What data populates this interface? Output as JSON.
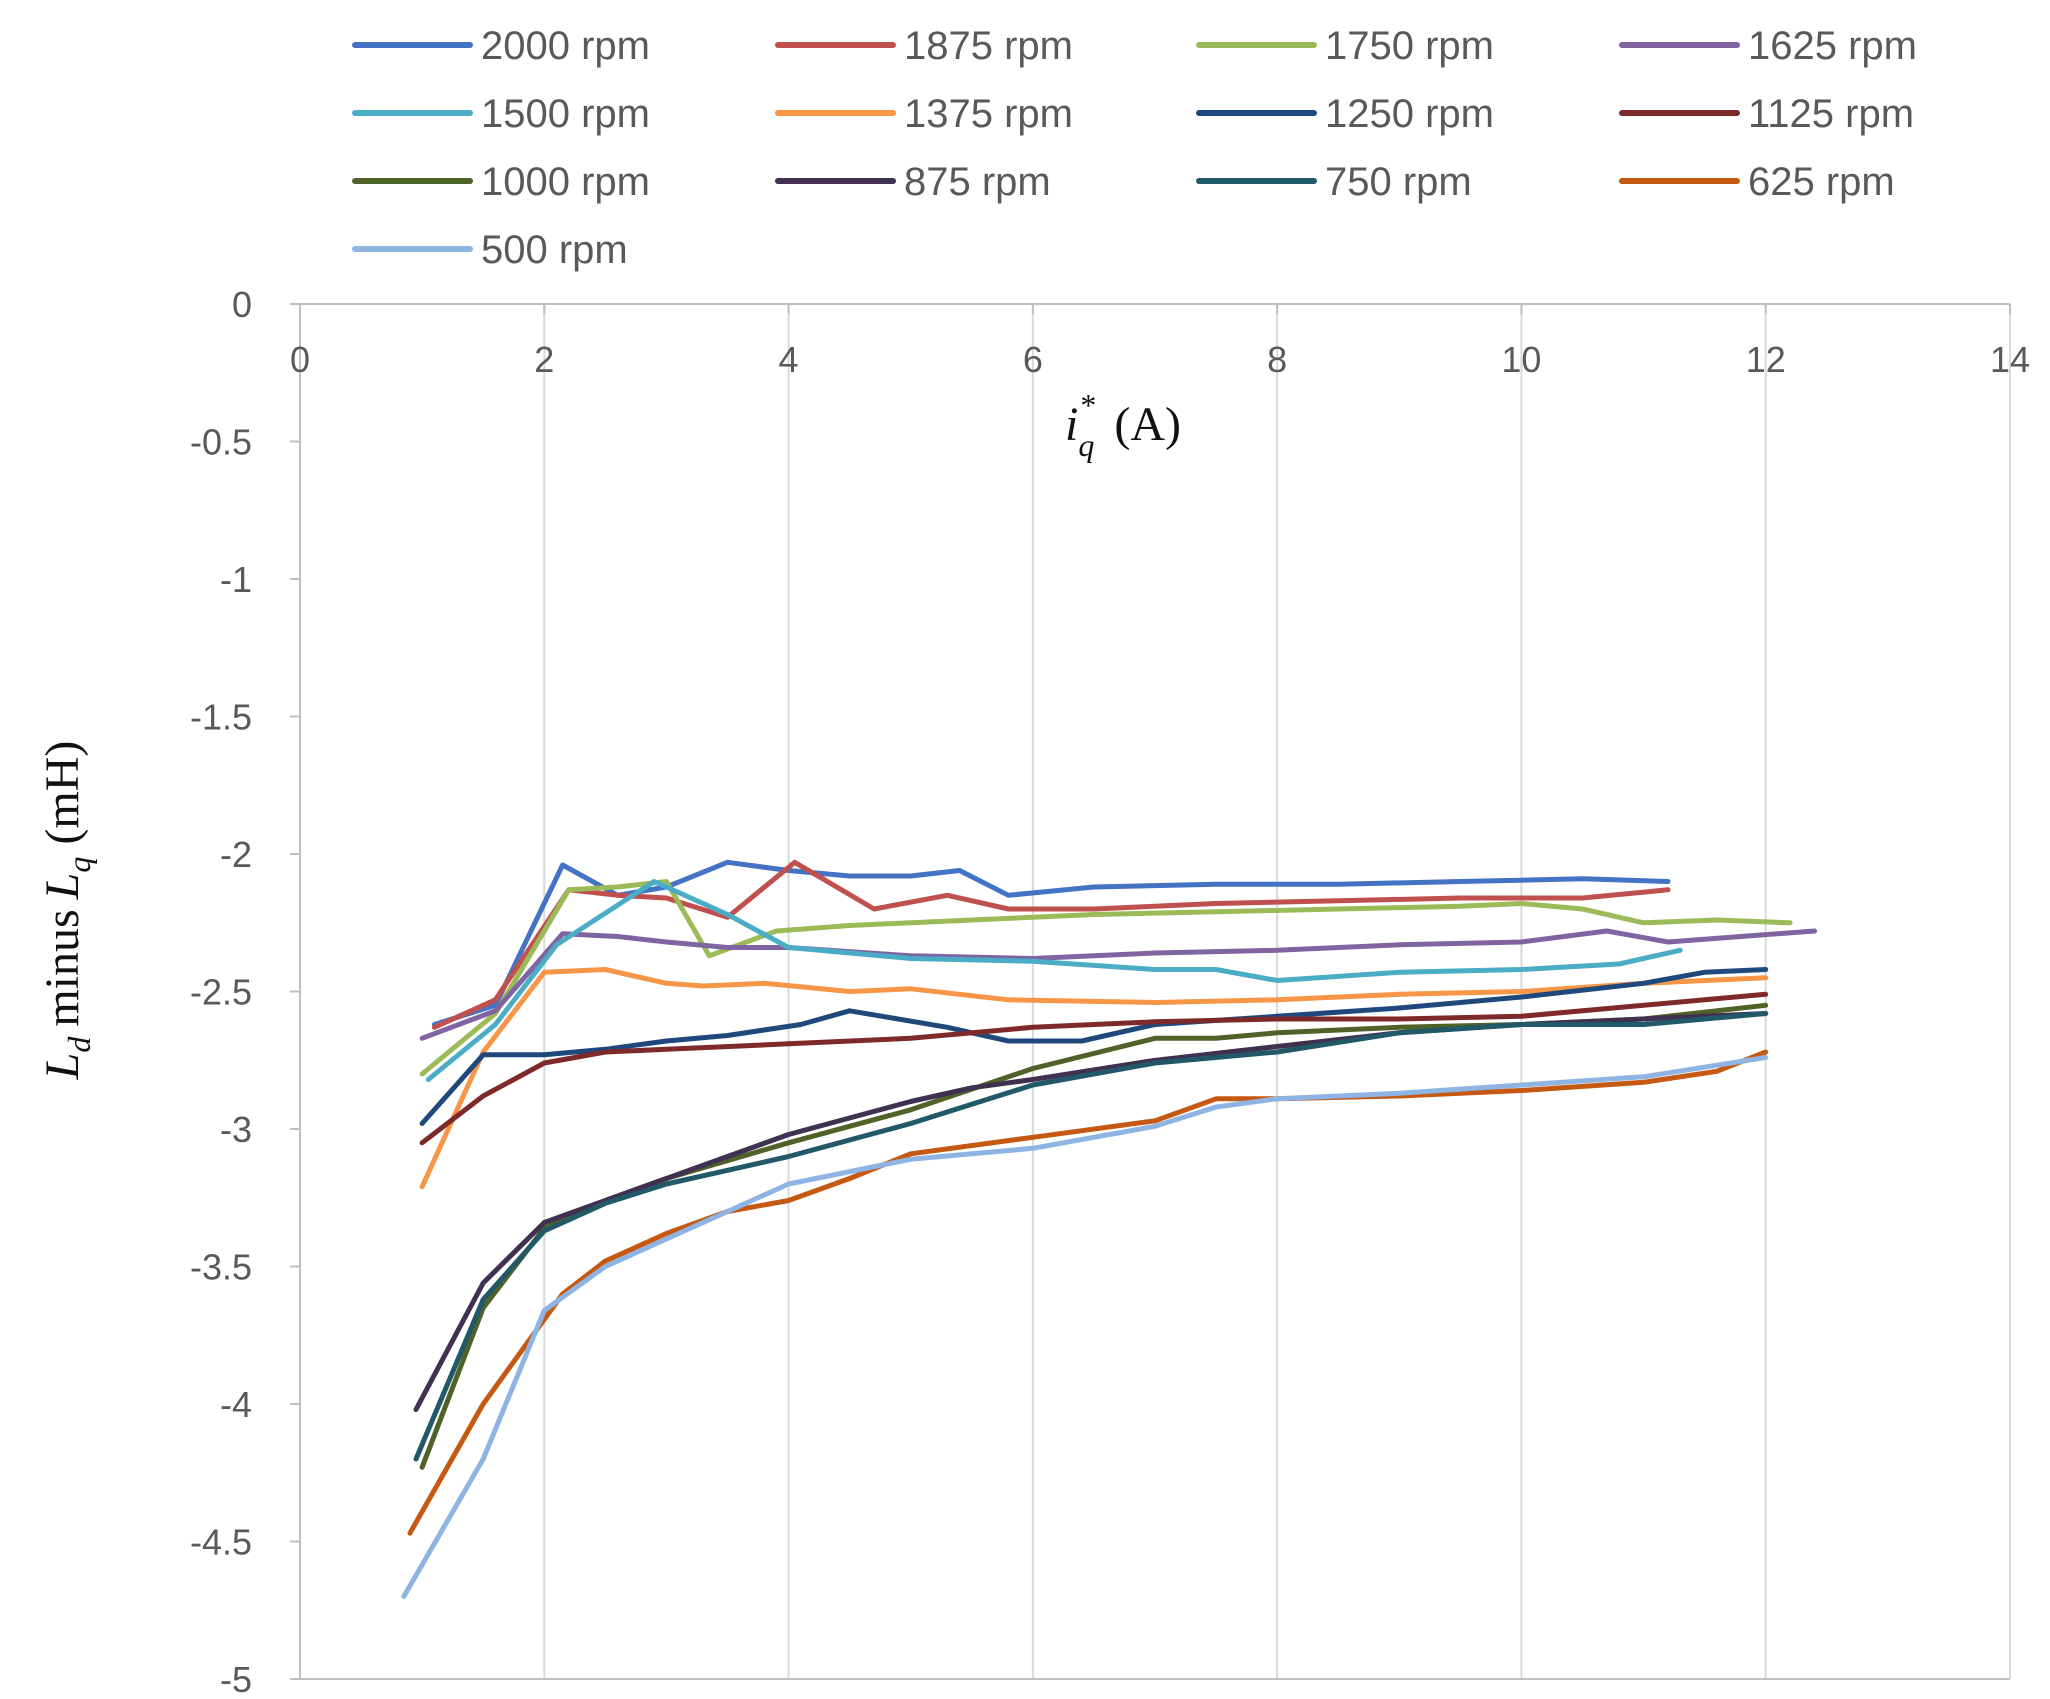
{
  "chart_data": {
    "type": "line",
    "title": "",
    "xlabel": {
      "var": "i",
      "sub": "q",
      "sup": "*",
      "unit": "(A)"
    },
    "ylabel": {
      "var1": "L",
      "sub1": "d",
      "mid": "minus",
      "var2": "L",
      "sub2": "q",
      "unit": "(mH)"
    },
    "xlim": [
      0,
      14
    ],
    "ylim": [
      -5,
      0
    ],
    "x_ticks": [
      "0",
      "2",
      "4",
      "6",
      "8",
      "10",
      "12",
      "14"
    ],
    "y_ticks": [
      "0",
      "-0.5",
      "-1",
      "-1.5",
      "-2",
      "-2.5",
      "-3",
      "-3.5",
      "-4",
      "-4.5",
      "-5"
    ],
    "x_tick_values": [
      0,
      2,
      4,
      6,
      8,
      10,
      12,
      14
    ],
    "y_tick_values": [
      0,
      -0.5,
      -1,
      -1.5,
      -2,
      -2.5,
      -3,
      -3.5,
      -4,
      -4.5,
      -5
    ],
    "grid": "vertical",
    "legend_position": "top",
    "series": [
      {
        "name": "2000 rpm",
        "color": "#4472C4",
        "x": [
          1.1,
          1.6,
          2.15,
          2.6,
          3.0,
          3.5,
          4.0,
          4.5,
          5.0,
          5.4,
          5.8,
          6.5,
          7.5,
          8.5,
          9.5,
          10.5,
          11.2
        ],
        "y": [
          -2.62,
          -2.55,
          -2.04,
          -2.15,
          -2.12,
          -2.03,
          -2.06,
          -2.08,
          -2.08,
          -2.06,
          -2.15,
          -2.12,
          -2.11,
          -2.11,
          -2.1,
          -2.09,
          -2.1
        ]
      },
      {
        "name": "1875 rpm",
        "color": "#C0504D",
        "x": [
          1.1,
          1.6,
          2.2,
          2.6,
          3.0,
          3.5,
          4.05,
          4.7,
          5.3,
          5.8,
          6.5,
          7.5,
          8.5,
          9.5,
          10.5,
          11.2
        ],
        "y": [
          -2.63,
          -2.53,
          -2.13,
          -2.15,
          -2.16,
          -2.23,
          -2.03,
          -2.2,
          -2.15,
          -2.2,
          -2.2,
          -2.18,
          -2.17,
          -2.16,
          -2.16,
          -2.13
        ]
      },
      {
        "name": "1750 rpm",
        "color": "#9BBB59",
        "x": [
          1.0,
          1.6,
          2.2,
          2.6,
          3.0,
          3.35,
          3.9,
          4.5,
          5.5,
          6.5,
          7.5,
          8.5,
          9.5,
          10.0,
          10.5,
          11.0,
          11.6,
          12.2
        ],
        "y": [
          -2.8,
          -2.58,
          -2.13,
          -2.12,
          -2.1,
          -2.37,
          -2.28,
          -2.26,
          -2.24,
          -2.22,
          -2.21,
          -2.2,
          -2.19,
          -2.18,
          -2.2,
          -2.25,
          -2.24,
          -2.25
        ]
      },
      {
        "name": "1625 rpm",
        "color": "#8064A2",
        "x": [
          1.0,
          1.6,
          2.15,
          2.6,
          3.0,
          3.5,
          4.0,
          5.0,
          6.0,
          7.0,
          8.0,
          9.0,
          10.0,
          10.7,
          11.2,
          12.4
        ],
        "y": [
          -2.67,
          -2.57,
          -2.29,
          -2.3,
          -2.32,
          -2.34,
          -2.34,
          -2.37,
          -2.38,
          -2.36,
          -2.35,
          -2.33,
          -2.32,
          -2.28,
          -2.32,
          -2.28
        ]
      },
      {
        "name": "1500 rpm",
        "color": "#4BACC6",
        "x": [
          1.05,
          1.6,
          2.1,
          2.9,
          3.5,
          4.0,
          5.0,
          6.0,
          7.0,
          7.5,
          8.0,
          9.0,
          10.0,
          10.8,
          11.3
        ],
        "y": [
          -2.82,
          -2.62,
          -2.33,
          -2.1,
          -2.22,
          -2.34,
          -2.38,
          -2.39,
          -2.42,
          -2.42,
          -2.46,
          -2.43,
          -2.42,
          -2.4,
          -2.35
        ]
      },
      {
        "name": "1375 rpm",
        "color": "#F79646",
        "x": [
          1.0,
          1.5,
          2.0,
          2.5,
          3.0,
          3.3,
          3.8,
          4.5,
          5.0,
          5.8,
          7.0,
          8.0,
          9.0,
          10.0,
          11.0,
          12.0
        ],
        "y": [
          -3.21,
          -2.72,
          -2.43,
          -2.42,
          -2.47,
          -2.48,
          -2.47,
          -2.5,
          -2.49,
          -2.53,
          -2.54,
          -2.53,
          -2.51,
          -2.5,
          -2.47,
          -2.45
        ]
      },
      {
        "name": "1250 rpm",
        "color": "#1F497D",
        "x": [
          1.0,
          1.5,
          2.0,
          2.5,
          3.0,
          3.5,
          4.1,
          4.5,
          5.3,
          5.8,
          6.4,
          7.0,
          8.0,
          9.0,
          10.0,
          11.0,
          11.5,
          12.0
        ],
        "y": [
          -2.98,
          -2.73,
          -2.73,
          -2.71,
          -2.68,
          -2.66,
          -2.62,
          -2.57,
          -2.63,
          -2.68,
          -2.68,
          -2.62,
          -2.59,
          -2.56,
          -2.52,
          -2.47,
          -2.43,
          -2.42
        ]
      },
      {
        "name": "1125 rpm",
        "color": "#7F2A2A",
        "x": [
          1.0,
          1.5,
          2.0,
          2.5,
          3.0,
          4.0,
          5.0,
          6.0,
          7.0,
          8.0,
          9.0,
          10.0,
          11.0,
          12.0
        ],
        "y": [
          -3.05,
          -2.88,
          -2.76,
          -2.72,
          -2.71,
          -2.69,
          -2.67,
          -2.63,
          -2.61,
          -2.6,
          -2.6,
          -2.59,
          -2.55,
          -2.51
        ]
      },
      {
        "name": "1000 rpm",
        "color": "#4F6228",
        "x": [
          1.0,
          1.5,
          2.0,
          2.5,
          3.0,
          4.0,
          5.0,
          6.0,
          7.0,
          7.5,
          8.0,
          9.0,
          10.0,
          11.0,
          12.0
        ],
        "y": [
          -4.23,
          -3.65,
          -3.36,
          -3.26,
          -3.18,
          -3.05,
          -2.93,
          -2.78,
          -2.67,
          -2.67,
          -2.65,
          -2.63,
          -2.62,
          -2.6,
          -2.55
        ]
      },
      {
        "name": "875 rpm",
        "color": "#403151",
        "x": [
          0.95,
          1.5,
          2.0,
          2.5,
          3.0,
          3.5,
          4.0,
          4.5,
          5.0,
          5.5,
          6.0,
          7.0,
          8.0,
          9.0,
          10.0,
          11.0,
          12.0
        ],
        "y": [
          -4.02,
          -3.56,
          -3.34,
          -3.26,
          -3.18,
          -3.1,
          -3.02,
          -2.96,
          -2.9,
          -2.85,
          -2.82,
          -2.75,
          -2.7,
          -2.65,
          -2.62,
          -2.6,
          -2.58
        ]
      },
      {
        "name": "750 rpm",
        "color": "#215968",
        "x": [
          0.95,
          1.5,
          2.0,
          2.5,
          3.0,
          3.5,
          4.0,
          5.0,
          6.0,
          7.0,
          8.0,
          9.0,
          10.0,
          11.0,
          12.0
        ],
        "y": [
          -4.2,
          -3.62,
          -3.37,
          -3.27,
          -3.2,
          -3.15,
          -3.1,
          -2.98,
          -2.84,
          -2.76,
          -2.72,
          -2.65,
          -2.62,
          -2.62,
          -2.58
        ]
      },
      {
        "name": "625 rpm",
        "color": "#C65911",
        "x": [
          0.9,
          1.5,
          2.15,
          2.5,
          3.0,
          3.5,
          4.0,
          4.5,
          5.0,
          6.0,
          7.0,
          7.5,
          8.0,
          9.0,
          10.0,
          11.0,
          11.6,
          12.0
        ],
        "y": [
          -4.47,
          -4.0,
          -3.6,
          -3.48,
          -3.38,
          -3.3,
          -3.26,
          -3.18,
          -3.09,
          -3.03,
          -2.97,
          -2.89,
          -2.89,
          -2.88,
          -2.86,
          -2.83,
          -2.79,
          -2.72
        ]
      },
      {
        "name": "500 rpm",
        "color": "#8EB4E3",
        "x": [
          0.85,
          1.5,
          2.0,
          2.5,
          3.0,
          3.5,
          4.0,
          5.0,
          6.0,
          7.0,
          7.5,
          8.0,
          9.0,
          10.0,
          11.0,
          12.0
        ],
        "y": [
          -4.7,
          -4.2,
          -3.66,
          -3.5,
          -3.4,
          -3.3,
          -3.2,
          -3.11,
          -3.07,
          -2.99,
          -2.92,
          -2.89,
          -2.87,
          -2.84,
          -2.81,
          -2.74
        ]
      }
    ]
  }
}
